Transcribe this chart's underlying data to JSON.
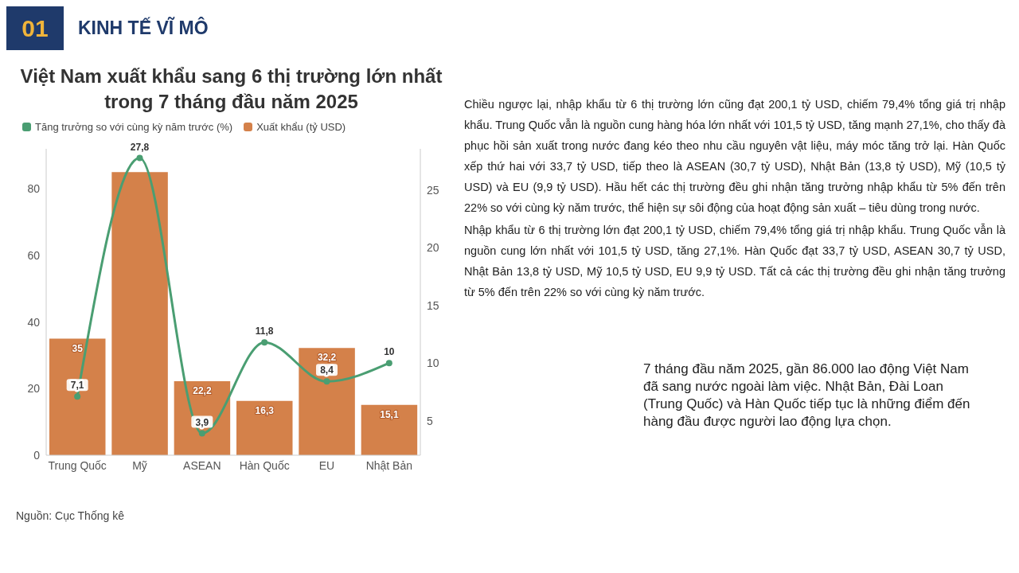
{
  "chart_data": {
    "type": "bar",
    "title": "Việt Nam xuất khẩu sang 6 thị trường lớn nhất trong 7 tháng đầu năm 2025",
    "categories": [
      "Trung Quốc",
      "Mỹ",
      "ASEAN",
      "Hàn Quốc",
      "EU",
      "Nhật Bản"
    ],
    "series": [
      {
        "type": "line",
        "name": "Tăng trưởng so với cùng kỳ năm trước (%)",
        "color": "#4a9e72",
        "axis": "y2",
        "marker": "circle",
        "values": [
          7.1,
          27.8,
          3.9,
          11.8,
          8.4,
          10
        ],
        "value_labels": [
          "7,1",
          "27,8",
          "3,9",
          "11,8",
          "8,4",
          "10"
        ]
      },
      {
        "name": "Xuất khẩu (tỷ USD)",
        "color": "#d4814a",
        "values": [
          35,
          85,
          22.2,
          16.3,
          32.2,
          15.1
        ],
        "value_labels": [
          "35",
          null,
          "22,2",
          "16,3",
          "32,2",
          "15,1"
        ]
      }
    ],
    "ylim": [
      0,
      92
    ],
    "yticks": [
      0,
      20,
      40,
      60,
      80
    ],
    "y2lim": [
      2,
      28.6
    ],
    "y2ticks": [
      5,
      10,
      15,
      20,
      25
    ],
    "grid": false,
    "legend": "top left",
    "annotations": [
      "01",
      "KINH TẾ VĨ MÔ",
      "Nguồn: Cục Thống kê",
      "Chiều ngược lại, nhập khẩu từ 6 thị trường lớn cũng đạt 200,1 tỷ USD, chiếm 79,4% tổng giá trị nhập khẩu. Trung Quốc vẫn là nguồn cung hàng hóa lớn nhất với 101,5 tỷ USD, tăng mạnh 27,1%, cho thấy đà phục hồi sản xuất trong nước đang kéo theo nhu cầu nguyên vật liệu, máy móc tăng trở lại. Hàn Quốc xếp thứ hai với 33,7 tỷ USD, tiếp theo là ASEAN (30,7 tỷ USD), Nhật Bản (13,8 tỷ USD), Mỹ (10,5 tỷ USD) và EU (9,9 tỷ USD). Hầu hết các thị trường đều ghi nhận tăng trưởng nhập khẩu từ 5% đến trên 22% so với cùng kỳ năm trước, thể hiện sự sôi động của hoạt động sản xuất – tiêu dùng trong nước.",
      "Nhập khẩu từ 6 thị trường lớn đạt 200,1 tỷ USD, chiếm 79,4% tổng giá trị nhập khẩu. Trung Quốc vẫn là nguồn cung lớn nhất với 101,5 tỷ USD, tăng 27,1%. Hàn Quốc đạt 33,7 tỷ USD, ASEAN 30,7 tỷ USD, Nhật Bản 13,8 tỷ USD, Mỹ 10,5 tỷ USD, EU 9,9 tỷ USD. Tất cả các thị trường đều ghi nhận tăng trưởng từ 5% đến trên 22% so với cùng kỳ năm trước.",
      "7 tháng đầu năm 2025, gần 86.000 lao động Việt Nam đã sang nước ngoài làm việc. Nhật Bản, Đài Loan (Trung Quốc) và Hàn Quốc tiếp tục là những điểm đến hàng đầu được người lao động lựa chọn."
    ]
  }
}
